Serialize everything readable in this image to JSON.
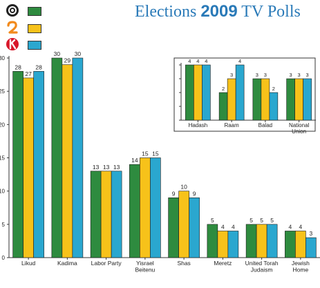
{
  "title": {
    "prefix": "Elections ",
    "year": "2009",
    "suffix": " TV Polls"
  },
  "legend": [
    {
      "name": "",
      "icon": "channel-10-logo-icon",
      "color": "#2e8b3f"
    },
    {
      "name": "",
      "icon": "channel-2-logo-icon",
      "color": "#f7c21a"
    },
    {
      "name": "",
      "icon": "channel-1-logo-icon",
      "color": "#2aa7cf"
    }
  ],
  "chart_data": [
    {
      "type": "bar",
      "title": "",
      "xlabel": "",
      "ylabel": "",
      "ylim": [
        0,
        30
      ],
      "yticks": [
        0,
        5,
        10,
        15,
        20,
        25,
        30
      ],
      "grid": false,
      "categories": [
        "Likud",
        "Kadima",
        "Labor Party",
        "Yisrael Beitenu",
        "Shas",
        "Meretz",
        "United Torah Judaism",
        "Jewish Home"
      ],
      "category_labels": [
        [
          "Likud"
        ],
        [
          "Kadima"
        ],
        [
          "Labor Party"
        ],
        [
          "Yisrael",
          "Beitenu"
        ],
        [
          "Shas"
        ],
        [
          "Meretz"
        ],
        [
          "United Torah",
          "Judaism"
        ],
        [
          "Jewish",
          "Home"
        ]
      ],
      "series": [
        {
          "color": "#2e8b3f",
          "values": [
            28,
            30,
            13,
            14,
            9,
            5,
            5,
            4
          ]
        },
        {
          "color": "#f7c21a",
          "values": [
            27,
            29,
            13,
            15,
            10,
            4,
            5,
            4
          ]
        },
        {
          "color": "#2aa7cf",
          "values": [
            28,
            30,
            13,
            15,
            9,
            4,
            5,
            3
          ]
        }
      ]
    },
    {
      "type": "bar",
      "title": "",
      "ylim": [
        0,
        4
      ],
      "yticks": [
        0,
        1,
        2,
        3,
        4
      ],
      "categories": [
        "Hadash",
        "Raam",
        "Balad",
        "National Union"
      ],
      "category_labels": [
        [
          "Hadash"
        ],
        [
          "Raam"
        ],
        [
          "Balad"
        ],
        [
          "National",
          "Union"
        ]
      ],
      "series": [
        {
          "color": "#2e8b3f",
          "values": [
            4,
            2,
            3,
            3
          ]
        },
        {
          "color": "#f7c21a",
          "values": [
            4,
            3,
            3,
            3
          ]
        },
        {
          "color": "#2aa7cf",
          "values": [
            4,
            4,
            2,
            3
          ]
        }
      ]
    }
  ]
}
